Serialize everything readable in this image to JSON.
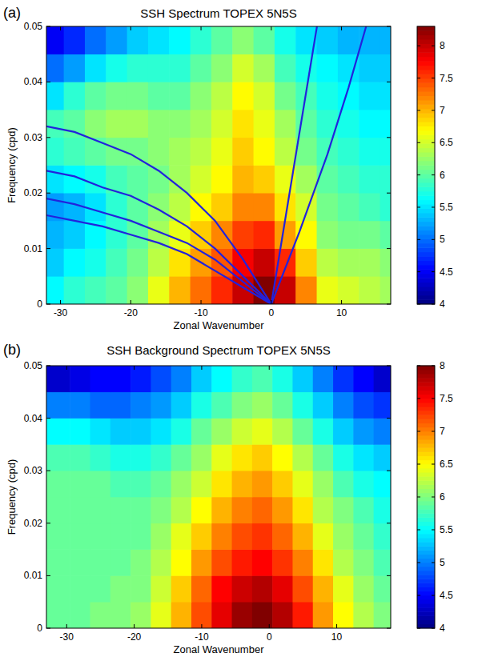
{
  "chart_data": [
    {
      "type": "heatmap",
      "label": "(a)",
      "title": "SSH Spectrum TOPEX 5N5S",
      "x_label": "Zonal Wavenumber",
      "y_label": "Frequency (cpd)",
      "xlim": [
        -32,
        17
      ],
      "ylim": [
        0,
        0.05
      ],
      "xticks": [
        -30,
        -20,
        -10,
        0,
        10
      ],
      "yticks": [
        0,
        0.01,
        0.02,
        0.03,
        0.04,
        0.05
      ],
      "x": [
        -31,
        -28,
        -25,
        -22,
        -19,
        -16,
        -13,
        -10,
        -7,
        -4,
        -1,
        2,
        5,
        8,
        11,
        14,
        17
      ],
      "y": [
        0.0025,
        0.0075,
        0.0125,
        0.0175,
        0.0225,
        0.0275,
        0.0325,
        0.0375,
        0.0425,
        0.0475
      ],
      "z": [
        [
          5.6,
          5.8,
          5.9,
          6.0,
          6.2,
          6.6,
          7.0,
          7.3,
          7.6,
          8.0,
          8.3,
          8.0,
          7.2,
          6.6,
          6.5,
          6.4,
          6.3
        ],
        [
          5.4,
          5.6,
          5.7,
          5.9,
          6.1,
          6.4,
          6.8,
          7.1,
          7.4,
          7.8,
          8.0,
          7.6,
          6.9,
          6.4,
          6.3,
          6.3,
          6.2
        ],
        [
          5.3,
          5.4,
          5.6,
          5.8,
          6.0,
          6.3,
          6.6,
          6.9,
          7.2,
          7.5,
          7.6,
          7.1,
          6.7,
          6.2,
          6.1,
          6.1,
          6.0
        ],
        [
          5.2,
          5.3,
          5.5,
          5.8,
          6.0,
          6.2,
          6.4,
          6.7,
          6.9,
          7.2,
          7.2,
          6.8,
          6.5,
          6.1,
          6.0,
          5.9,
          5.8
        ],
        [
          5.5,
          5.6,
          5.7,
          5.9,
          6.0,
          6.1,
          6.3,
          6.5,
          6.7,
          7.0,
          6.9,
          6.6,
          6.3,
          6.0,
          5.9,
          5.8,
          5.8
        ],
        [
          5.8,
          5.9,
          6.0,
          6.1,
          6.1,
          6.2,
          6.3,
          6.4,
          6.6,
          6.9,
          6.7,
          6.4,
          6.1,
          5.9,
          5.8,
          5.7,
          5.7
        ],
        [
          5.9,
          6.0,
          6.2,
          6.3,
          6.3,
          6.2,
          6.2,
          6.3,
          6.5,
          6.8,
          6.6,
          6.3,
          6.0,
          5.8,
          5.7,
          5.6,
          5.6
        ],
        [
          5.5,
          5.8,
          6.0,
          6.1,
          6.1,
          6.0,
          6.0,
          6.2,
          6.4,
          6.7,
          6.5,
          6.1,
          5.9,
          5.7,
          5.6,
          5.5,
          5.5
        ],
        [
          5.0,
          5.2,
          5.5,
          5.7,
          5.8,
          5.8,
          5.8,
          6.0,
          6.2,
          6.5,
          6.3,
          5.9,
          5.7,
          5.6,
          5.5,
          5.4,
          5.4
        ],
        [
          4.5,
          4.7,
          5.0,
          5.2,
          5.4,
          5.5,
          5.6,
          5.8,
          6.0,
          6.2,
          6.0,
          5.7,
          5.5,
          5.4,
          5.3,
          5.3,
          5.3
        ]
      ],
      "colorbar_range": [
        4,
        8.3
      ],
      "colorbar_ticks": [
        4,
        4.5,
        5,
        5.5,
        6,
        6.5,
        7,
        7.5,
        8
      ],
      "series": [
        {
          "type": "line",
          "color": "#2222dd",
          "x": [
            0,
            -4,
            -8,
            -12,
            -16,
            -20,
            -24,
            -28,
            -32
          ],
          "values": [
            0,
            0.008,
            0.015,
            0.02,
            0.024,
            0.027,
            0.029,
            0.031,
            0.032
          ]
        },
        {
          "type": "line",
          "color": "#2222dd",
          "x": [
            0,
            -4,
            -8,
            -12,
            -16,
            -20,
            -24,
            -28,
            -32
          ],
          "values": [
            0,
            0.005,
            0.01,
            0.014,
            0.017,
            0.0195,
            0.021,
            0.023,
            0.024
          ]
        },
        {
          "type": "line",
          "color": "#2222dd",
          "x": [
            0,
            -4,
            -8,
            -12,
            -16,
            -20,
            -24,
            -28,
            -32
          ],
          "values": [
            0,
            0.004,
            0.008,
            0.011,
            0.013,
            0.015,
            0.0165,
            0.018,
            0.019
          ]
        },
        {
          "type": "line",
          "color": "#2222dd",
          "x": [
            0,
            -4,
            -8,
            -12,
            -16,
            -20,
            -24,
            -28,
            -32
          ],
          "values": [
            0,
            0.003,
            0.006,
            0.009,
            0.011,
            0.0125,
            0.014,
            0.015,
            0.016
          ]
        },
        {
          "type": "line",
          "color": "#2222dd",
          "x": [
            0,
            6.5
          ],
          "values": [
            0,
            0.05
          ]
        },
        {
          "type": "line",
          "color": "#2222dd",
          "x": [
            0,
            4,
            8,
            11,
            13.5
          ],
          "values": [
            0,
            0.013,
            0.027,
            0.039,
            0.05
          ]
        }
      ]
    },
    {
      "type": "heatmap",
      "label": "(b)",
      "title": "SSH Background Spectrum TOPEX 5N5S",
      "x_label": "Zonal Wavenumber",
      "y_label": "Frequency (cpd)",
      "xlim": [
        -33,
        18
      ],
      "ylim": [
        0,
        0.05
      ],
      "xticks": [
        -30,
        -20,
        -10,
        0,
        10
      ],
      "yticks": [
        0,
        0.01,
        0.02,
        0.03,
        0.04,
        0.05
      ],
      "x": [
        -31,
        -28,
        -25,
        -22,
        -19,
        -16,
        -13,
        -10,
        -7,
        -4,
        -1,
        2,
        5,
        8,
        11,
        14,
        17
      ],
      "y": [
        0.0025,
        0.0075,
        0.0125,
        0.0175,
        0.0225,
        0.0275,
        0.0325,
        0.0375,
        0.0425,
        0.0475
      ],
      "z": [
        [
          5.9,
          5.9,
          6.0,
          6.0,
          6.1,
          6.4,
          6.8,
          7.2,
          7.6,
          7.9,
          8.0,
          7.8,
          7.4,
          6.9,
          6.5,
          6.2,
          6.0
        ],
        [
          5.9,
          5.9,
          5.9,
          6.0,
          6.0,
          6.3,
          6.7,
          7.1,
          7.5,
          7.7,
          7.8,
          7.6,
          7.2,
          6.8,
          6.4,
          6.1,
          5.9
        ],
        [
          5.9,
          5.9,
          5.9,
          5.9,
          6.0,
          6.2,
          6.5,
          6.9,
          7.2,
          7.4,
          7.5,
          7.3,
          7.0,
          6.6,
          6.2,
          6.0,
          5.8
        ],
        [
          5.9,
          5.9,
          5.9,
          5.9,
          5.9,
          6.1,
          6.4,
          6.7,
          7.0,
          7.2,
          7.3,
          7.1,
          6.8,
          6.4,
          6.1,
          5.9,
          5.7
        ],
        [
          5.9,
          5.9,
          5.9,
          5.9,
          5.9,
          6.0,
          6.2,
          6.5,
          6.8,
          7.0,
          7.1,
          6.9,
          6.6,
          6.2,
          6.0,
          5.8,
          5.6
        ],
        [
          5.9,
          5.9,
          5.9,
          5.8,
          5.8,
          5.9,
          6.1,
          6.3,
          6.6,
          6.8,
          6.9,
          6.7,
          6.4,
          6.1,
          5.8,
          5.6,
          5.5
        ],
        [
          5.8,
          5.8,
          5.7,
          5.6,
          5.6,
          5.7,
          5.9,
          6.1,
          6.4,
          6.6,
          6.7,
          6.5,
          6.2,
          5.9,
          5.6,
          5.4,
          5.3
        ],
        [
          5.5,
          5.5,
          5.4,
          5.3,
          5.3,
          5.4,
          5.6,
          5.9,
          6.1,
          6.3,
          6.4,
          6.2,
          5.9,
          5.6,
          5.3,
          5.1,
          5.0
        ],
        [
          5.0,
          5.0,
          4.9,
          4.9,
          5.0,
          5.1,
          5.3,
          5.6,
          5.8,
          6.0,
          6.1,
          5.9,
          5.6,
          5.3,
          5.0,
          4.8,
          4.7
        ],
        [
          4.3,
          4.4,
          4.5,
          4.5,
          4.6,
          4.8,
          5.0,
          5.3,
          5.5,
          5.7,
          5.8,
          5.6,
          5.3,
          5.0,
          4.7,
          4.5,
          4.3
        ]
      ],
      "colorbar_range": [
        4,
        8
      ],
      "colorbar_ticks": [
        4,
        4.5,
        5,
        5.5,
        6,
        6.5,
        7,
        7.5,
        8
      ]
    }
  ]
}
